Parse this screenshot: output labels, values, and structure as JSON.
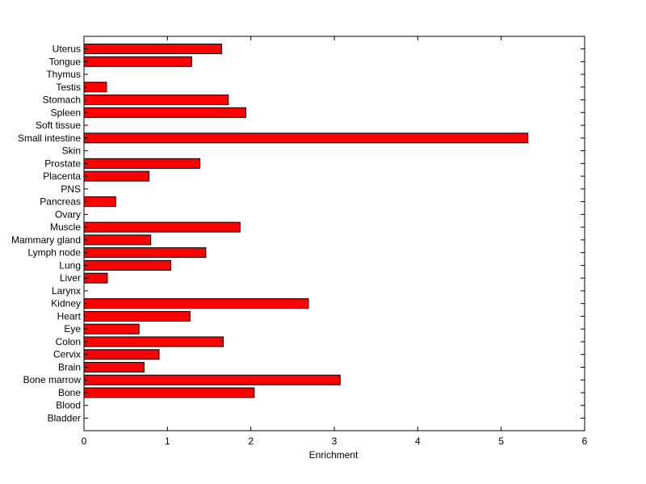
{
  "chart_data": {
    "type": "bar",
    "orientation": "horizontal",
    "title": "",
    "xlabel": "Enrichment",
    "ylabel": "",
    "xlim": [
      0,
      6
    ],
    "xticks": [
      "0",
      "1",
      "2",
      "3",
      "4",
      "5",
      "6"
    ],
    "grid": false,
    "bar_color": "#ff0000",
    "bar_edge_color": "#000000",
    "categories": [
      "Uterus",
      "Tongue",
      "Thymus",
      "Testis",
      "Stomach",
      "Spleen",
      "Soft tissue",
      "Small intestine",
      "Skin",
      "Prostate",
      "Placenta",
      "PNS",
      "Pancreas",
      "Ovary",
      "Muscle",
      "Mammary gland",
      "Lymph node",
      "Lung",
      "Liver",
      "Larynx",
      "Kidney",
      "Heart",
      "Eye",
      "Colon",
      "Cervix",
      "Brain",
      "Bone marrow",
      "Bone",
      "Blood",
      "Bladder"
    ],
    "values": [
      1.65,
      1.29,
      0,
      0.27,
      1.73,
      1.94,
      0,
      5.32,
      0,
      1.39,
      0.78,
      0,
      0.38,
      0,
      1.87,
      0.8,
      1.46,
      1.04,
      0.28,
      0,
      2.69,
      1.27,
      0.66,
      1.67,
      0.9,
      0.72,
      3.07,
      2.04,
      0,
      0
    ]
  }
}
